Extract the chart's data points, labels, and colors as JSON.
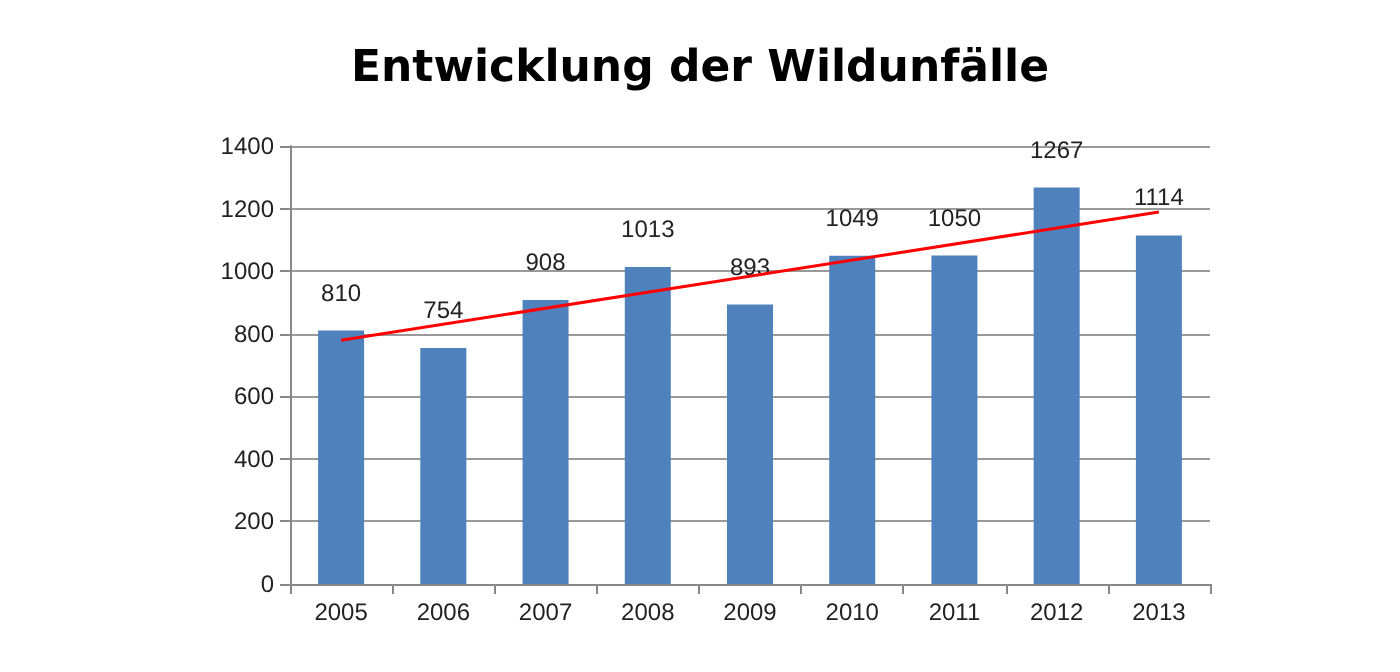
{
  "chart_data": {
    "type": "bar",
    "title": "Entwicklung der Wildunfälle",
    "categories": [
      "2005",
      "2006",
      "2007",
      "2008",
      "2009",
      "2010",
      "2011",
      "2012",
      "2013"
    ],
    "series": [
      {
        "color": "#4f81bd",
        "values": [
          810,
          754,
          908,
          1013,
          893,
          1049,
          1050,
          1267,
          1114
        ],
        "data_labels": true
      },
      {
        "type": "line",
        "color": "#ff0000",
        "values": [
          779,
          null,
          null,
          null,
          null,
          null,
          null,
          null,
          1189
        ],
        "marker": "none"
      }
    ],
    "ylim": [
      0,
      1400
    ],
    "yticks": [
      0,
      200,
      400,
      600,
      800,
      1000,
      1200,
      1400
    ],
    "grid": "y"
  }
}
